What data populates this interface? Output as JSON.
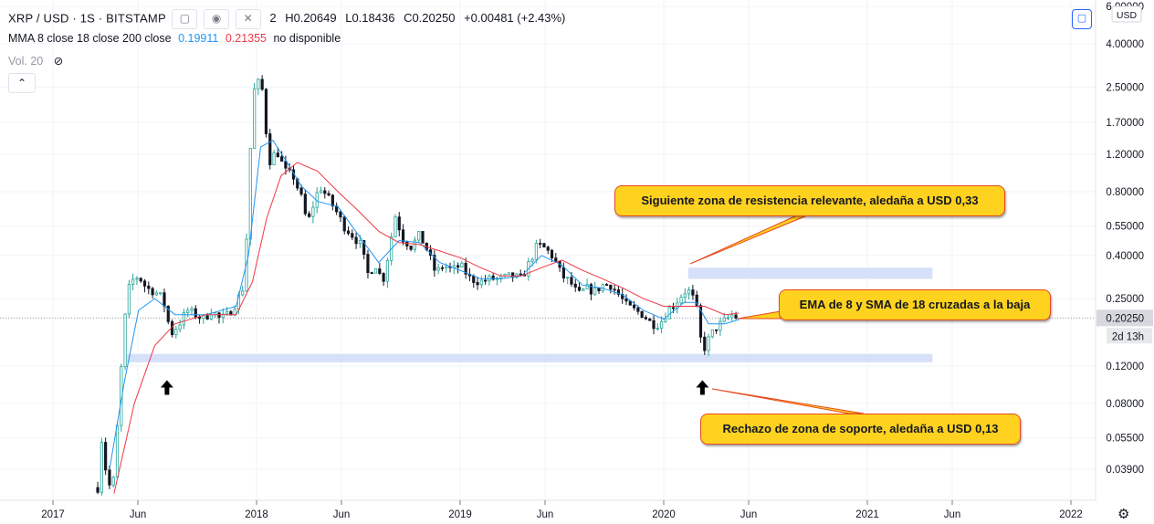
{
  "header": {
    "symbol": "XRP / USD · 1S · BITSTAMP",
    "partial_value": "2",
    "high_label": "H",
    "high": "0.20649",
    "low_label": "L",
    "low": "0.18436",
    "close_label": "C",
    "close": "0.20250",
    "change": "+0.00481 (+2.43%)",
    "indicator_label": "MMA 8 close 18 close 200 close",
    "indicator_v1": "0.19911",
    "indicator_v2": "0.21355",
    "indicator_na": "no disponible",
    "volume_label": "Vol. 20",
    "collapse_icon": "chevron-up-icon"
  },
  "annotations": {
    "resistance": "Siguiente zona de resistencia relevante, aledaña a USD 0,33",
    "ema": "EMA de 8 y SMA de 18 cruzadas a la baja",
    "support": "Rechazo de zona de soporte, aledaña a USD 0,13"
  },
  "colors": {
    "up": "#26a69a",
    "down": "#131722",
    "ema": "#2196f3",
    "sma": "#f23645",
    "zone": "#d1ddf7",
    "callout": "#ffd21f",
    "callout_border": "#e8481e"
  },
  "chart_data": {
    "type": "candlestick",
    "y_scale": "log",
    "y_unit": "USD",
    "ylim": [
      0.03,
      6.0
    ],
    "y_ticks": [
      6.0,
      4.0,
      2.5,
      1.7,
      1.2,
      0.8,
      0.55,
      0.4,
      0.25,
      0.12,
      0.08,
      0.055,
      0.039
    ],
    "y_tick_labels": [
      "6.00000",
      "4.00000",
      "2.50000",
      "1.70000",
      "1.20000",
      "0.80000",
      "0.55000",
      "0.40000",
      "0.25000",
      "0.12000",
      "0.08000",
      "0.05500",
      "0.03900"
    ],
    "last_price": 0.2025,
    "last_price_label": "0.20250",
    "countdown_label": "2d 13h",
    "x_ticks": [
      {
        "t": 2017.0,
        "label": "2017"
      },
      {
        "t": 2017.417,
        "label": "Jun"
      },
      {
        "t": 2018.0,
        "label": "2018"
      },
      {
        "t": 2018.417,
        "label": "Jun"
      },
      {
        "t": 2019.0,
        "label": "2019"
      },
      {
        "t": 2019.417,
        "label": "Jun"
      },
      {
        "t": 2020.0,
        "label": "2020"
      },
      {
        "t": 2020.417,
        "label": "Jun"
      },
      {
        "t": 2021.0,
        "label": "2021"
      },
      {
        "t": 2021.417,
        "label": "Jun"
      },
      {
        "t": 2022.0,
        "label": "2022"
      }
    ],
    "close_path": [
      [
        2017.22,
        0.032
      ],
      [
        2017.24,
        0.055
      ],
      [
        2017.27,
        0.032
      ],
      [
        2017.3,
        0.035
      ],
      [
        2017.33,
        0.1
      ],
      [
        2017.36,
        0.24
      ],
      [
        2017.38,
        0.3
      ],
      [
        2017.42,
        0.32
      ],
      [
        2017.46,
        0.28
      ],
      [
        2017.5,
        0.27
      ],
      [
        2017.54,
        0.25
      ],
      [
        2017.58,
        0.17
      ],
      [
        2017.62,
        0.19
      ],
      [
        2017.66,
        0.22
      ],
      [
        2017.7,
        0.21
      ],
      [
        2017.74,
        0.2
      ],
      [
        2017.78,
        0.22
      ],
      [
        2017.82,
        0.2
      ],
      [
        2017.86,
        0.21
      ],
      [
        2017.9,
        0.24
      ],
      [
        2017.94,
        0.29
      ],
      [
        2017.96,
        0.75
      ],
      [
        2017.98,
        2.2
      ],
      [
        2018.0,
        2.7
      ],
      [
        2018.03,
        2.4
      ],
      [
        2018.06,
        1.1
      ],
      [
        2018.1,
        1.25
      ],
      [
        2018.14,
        1.0
      ],
      [
        2018.18,
        0.95
      ],
      [
        2018.22,
        0.75
      ],
      [
        2018.25,
        0.56
      ],
      [
        2018.28,
        0.7
      ],
      [
        2018.31,
        0.85
      ],
      [
        2018.35,
        0.75
      ],
      [
        2018.39,
        0.65
      ],
      [
        2018.43,
        0.55
      ],
      [
        2018.47,
        0.5
      ],
      [
        2018.51,
        0.45
      ],
      [
        2018.55,
        0.32
      ],
      [
        2018.58,
        0.37
      ],
      [
        2018.62,
        0.3
      ],
      [
        2018.65,
        0.42
      ],
      [
        2018.68,
        0.62
      ],
      [
        2018.72,
        0.48
      ],
      [
        2018.76,
        0.44
      ],
      [
        2018.8,
        0.5
      ],
      [
        2018.84,
        0.42
      ],
      [
        2018.88,
        0.33
      ],
      [
        2018.92,
        0.36
      ],
      [
        2018.96,
        0.34
      ],
      [
        2019.0,
        0.36
      ],
      [
        2019.05,
        0.31
      ],
      [
        2019.1,
        0.3
      ],
      [
        2019.15,
        0.31
      ],
      [
        2019.2,
        0.31
      ],
      [
        2019.25,
        0.32
      ],
      [
        2019.3,
        0.31
      ],
      [
        2019.34,
        0.37
      ],
      [
        2019.38,
        0.45
      ],
      [
        2019.42,
        0.43
      ],
      [
        2019.46,
        0.39
      ],
      [
        2019.5,
        0.32
      ],
      [
        2019.54,
        0.3
      ],
      [
        2019.58,
        0.26
      ],
      [
        2019.62,
        0.28
      ],
      [
        2019.66,
        0.27
      ],
      [
        2019.7,
        0.29
      ],
      [
        2019.74,
        0.29
      ],
      [
        2019.78,
        0.26
      ],
      [
        2019.82,
        0.23
      ],
      [
        2019.86,
        0.22
      ],
      [
        2019.9,
        0.21
      ],
      [
        2019.94,
        0.19
      ],
      [
        2019.98,
        0.19
      ],
      [
        2020.02,
        0.22
      ],
      [
        2020.06,
        0.24
      ],
      [
        2020.1,
        0.27
      ],
      [
        2020.13,
        0.27
      ],
      [
        2020.16,
        0.23
      ],
      [
        2020.19,
        0.14
      ],
      [
        2020.22,
        0.16
      ],
      [
        2020.25,
        0.18
      ],
      [
        2020.28,
        0.19
      ],
      [
        2020.31,
        0.2
      ],
      [
        2020.34,
        0.21
      ],
      [
        2020.37,
        0.2025
      ]
    ],
    "series": [
      {
        "name": "EMA 8",
        "path": [
          [
            2017.28,
            0.04
          ],
          [
            2017.35,
            0.1
          ],
          [
            2017.42,
            0.22
          ],
          [
            2017.5,
            0.25
          ],
          [
            2017.6,
            0.21
          ],
          [
            2017.75,
            0.21
          ],
          [
            2017.9,
            0.23
          ],
          [
            2017.96,
            0.4
          ],
          [
            2018.02,
            1.3
          ],
          [
            2018.08,
            1.4
          ],
          [
            2018.15,
            1.1
          ],
          [
            2018.22,
            0.85
          ],
          [
            2018.3,
            0.72
          ],
          [
            2018.4,
            0.68
          ],
          [
            2018.5,
            0.5
          ],
          [
            2018.6,
            0.37
          ],
          [
            2018.7,
            0.47
          ],
          [
            2018.8,
            0.46
          ],
          [
            2018.9,
            0.37
          ],
          [
            2019.0,
            0.34
          ],
          [
            2019.1,
            0.31
          ],
          [
            2019.2,
            0.31
          ],
          [
            2019.3,
            0.32
          ],
          [
            2019.4,
            0.4
          ],
          [
            2019.5,
            0.36
          ],
          [
            2019.6,
            0.29
          ],
          [
            2019.7,
            0.28
          ],
          [
            2019.8,
            0.26
          ],
          [
            2019.9,
            0.22
          ],
          [
            2020.0,
            0.2
          ],
          [
            2020.1,
            0.24
          ],
          [
            2020.16,
            0.24
          ],
          [
            2020.22,
            0.19
          ],
          [
            2020.3,
            0.19
          ],
          [
            2020.37,
            0.19911
          ]
        ]
      },
      {
        "name": "SMA 18",
        "path": [
          [
            2017.3,
            0.03
          ],
          [
            2017.4,
            0.08
          ],
          [
            2017.5,
            0.15
          ],
          [
            2017.6,
            0.19
          ],
          [
            2017.75,
            0.21
          ],
          [
            2017.9,
            0.21
          ],
          [
            2017.98,
            0.3
          ],
          [
            2018.05,
            0.6
          ],
          [
            2018.12,
            0.95
          ],
          [
            2018.2,
            1.1
          ],
          [
            2018.3,
            1.0
          ],
          [
            2018.4,
            0.8
          ],
          [
            2018.5,
            0.65
          ],
          [
            2018.6,
            0.52
          ],
          [
            2018.7,
            0.46
          ],
          [
            2018.8,
            0.45
          ],
          [
            2018.9,
            0.42
          ],
          [
            2019.0,
            0.39
          ],
          [
            2019.1,
            0.35
          ],
          [
            2019.2,
            0.32
          ],
          [
            2019.3,
            0.32
          ],
          [
            2019.4,
            0.35
          ],
          [
            2019.5,
            0.38
          ],
          [
            2019.6,
            0.34
          ],
          [
            2019.7,
            0.31
          ],
          [
            2019.8,
            0.28
          ],
          [
            2019.9,
            0.25
          ],
          [
            2020.0,
            0.23
          ],
          [
            2020.1,
            0.23
          ],
          [
            2020.2,
            0.23
          ],
          [
            2020.3,
            0.21
          ],
          [
            2020.37,
            0.21355
          ]
        ]
      }
    ],
    "zones": [
      {
        "name": "resistance",
        "t0": 2020.12,
        "t1": 2021.32,
        "y0": 0.31,
        "y1": 0.35
      },
      {
        "name": "support",
        "t0": 2017.36,
        "t1": 2021.32,
        "y0": 0.125,
        "y1": 0.137
      }
    ],
    "arrows": [
      {
        "t": 2017.56,
        "y": 0.095
      },
      {
        "t": 2020.19,
        "y": 0.095
      }
    ]
  }
}
